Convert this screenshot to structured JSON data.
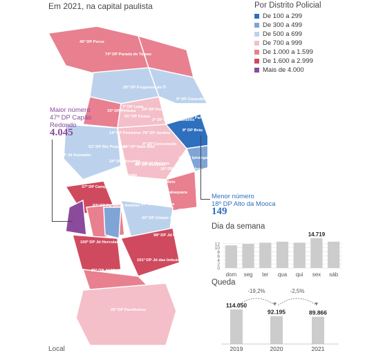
{
  "subtitle": "Em 2021, na capital paulista",
  "legend": {
    "title": "Por Distrito Policial",
    "items": [
      {
        "label": "De 100 a 299",
        "color": "#2e6fbe"
      },
      {
        "label": "De 300 a 499",
        "color": "#7fa4d6"
      },
      {
        "label": "De 500 a 699",
        "color": "#bcd2ec"
      },
      {
        "label": "De 700 a 999",
        "color": "#f4bfc8"
      },
      {
        "label": "De 1.000 a 1.599",
        "color": "#e8808f"
      },
      {
        "label": "De 1.600 a 2.999",
        "color": "#cf4a5e"
      },
      {
        "label": "Mais de 4.000",
        "color": "#8b4a9c"
      }
    ]
  },
  "map_labels": [
    "46º DP Perus",
    "74º DP Parada de Taipas",
    "73º DP Jaçanã",
    "28º DP Freguesia do Ó",
    "9º DP Carandiru",
    "22º DP S. Miguel Paulista",
    "50º DP Itaim Paulista",
    "63º DP Vl Jacuí",
    "7º DP Lapa",
    "33º DP Pirituba",
    "23º DP Perdizes",
    "91º DP Ceasa",
    "3º DP Campos Elíseos",
    "12º DP Pari",
    "8º DP Brás",
    "64º DP Cidade A.E. Carvalho",
    "32º DP Itaquera",
    "65º DP Lageado",
    "44º DP Guaianases",
    "14º DP Pinheiros",
    "78º DP Jardins",
    "4º DP Consolação",
    "51º DP Rio Pequeno",
    "15º DP Itaim Bibi",
    "58º DP Vl Formosa",
    "66º DP Jd Aricanduva",
    "53º DP Pq do Carmo",
    "75º DP Jd Arpoador",
    "34º DP Morumbi",
    "36º DP Vl Mariana",
    "16º DP Vl Clementino",
    "17º DP Ipiranga",
    "42º DP Pq São Lucas",
    "49º DP São Mateus",
    "69º DP Teotônio Vilela",
    "89º DP Jd Taboão",
    "96º DP Monções",
    "27º DP Campo Belo",
    "55º DP Pq São Rafael",
    "70º DP Vl Ema",
    "37º DP Campo Limpo",
    "92º DP Pq Santo Antônio",
    "11º DP Santo Amaro",
    "80º DP Vl Joaniza",
    "35º DP Jabaquara",
    "43º DP Cidade Ademar",
    "97º DP Americanópolis",
    "100º DP Jd Herculano",
    "98º DP Jd Miriam",
    "101º DP Jd das Imbuias",
    "85º DP Jd Mirna",
    "54º DP Cidade Tiradentes",
    "25º DP Parelheiros"
  ],
  "callouts": {
    "max": {
      "title": "Maior número",
      "district": "47º DP Capão Redondo",
      "value": "4.045"
    },
    "min": {
      "title": "Menor número",
      "district": "18º DP Alto da Mooca",
      "value": "149"
    }
  },
  "weekday": {
    "title": "Dia da semana",
    "chart_data": {
      "type": "bar",
      "categories": [
        "dom",
        "seg",
        "ter",
        "qua",
        "qui",
        "sex",
        "sáb"
      ],
      "values": [
        11.2,
        11.9,
        12.5,
        13.0,
        12.5,
        14.719,
        13.0
      ],
      "value_labels": [
        "",
        "",
        "",
        "",
        "",
        "14.719",
        ""
      ],
      "ylim": [
        0,
        15
      ],
      "yticks": [
        0,
        2,
        4,
        6,
        8,
        10,
        12
      ],
      "grid": true,
      "color": "#cccccc"
    }
  },
  "decline": {
    "title": "Queda",
    "chart_data": {
      "type": "bar",
      "categories": [
        "2019",
        "2020",
        "2021"
      ],
      "values": [
        114050,
        92195,
        89866
      ],
      "value_labels": [
        "114.050",
        "92.195",
        "89.866"
      ],
      "changes": [
        "-19,2%",
        "-2,5%"
      ],
      "color": "#cccccc"
    }
  },
  "bottom_hint": "Local"
}
